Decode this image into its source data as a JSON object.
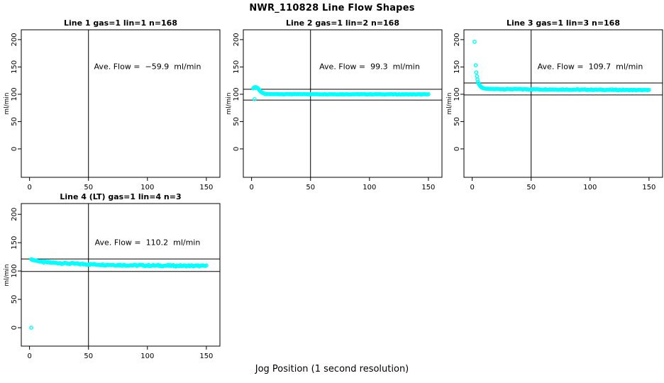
{
  "figure_title": "NWR_110828  Line Flow Shapes",
  "outer_x_label": "Jog Position (1 second resolution)",
  "point_color": "#00ffff",
  "axis_color": "#000000",
  "chart_data": [
    {
      "type": "scatter",
      "title": "Line 1 gas=1 lin=1 n=168",
      "annotation": "Ave. Flow =  −59.9  ml/min",
      "ave_flow_ml_min": -59.9,
      "gas": 1,
      "lin": 1,
      "n": 168,
      "ylabel": "ml/min",
      "xticks": [
        0,
        50,
        100,
        150
      ],
      "yticks": [
        0,
        50,
        100,
        150,
        200
      ],
      "xlim": [
        -7,
        161.5
      ],
      "ylim": [
        -52,
        218
      ],
      "vline_x": 50,
      "hlines": [],
      "outliers": [],
      "points_head": [],
      "tail": null
    },
    {
      "type": "scatter",
      "title": "Line 2 gas=1 lin=2 n=168",
      "annotation": "Ave. Flow =  99.3  ml/min",
      "ave_flow_ml_min": 99.3,
      "gas": 1,
      "lin": 2,
      "n": 168,
      "ylabel": "ml/min",
      "xticks": [
        0,
        50,
        100,
        150
      ],
      "yticks": [
        0,
        50,
        100,
        150,
        200
      ],
      "xlim": [
        -7,
        161.5
      ],
      "ylim": [
        -52,
        218
      ],
      "vline_x": 50,
      "hlines": [
        109.2,
        89.4
      ],
      "outliers": [
        [
          2.5,
          91
        ]
      ],
      "points_head": [
        [
          1.5,
          111
        ],
        [
          2,
          112
        ],
        [
          2.5,
          112.5
        ],
        [
          3,
          113
        ],
        [
          3.5,
          113
        ],
        [
          4,
          112.5
        ],
        [
          4.5,
          112
        ],
        [
          5,
          111.5
        ],
        [
          5.5,
          110.5
        ],
        [
          6,
          109.5
        ],
        [
          6.5,
          108
        ],
        [
          7,
          106.5
        ],
        [
          7.5,
          105.5
        ],
        [
          8,
          104.5
        ],
        [
          8.5,
          103.5
        ],
        [
          9,
          103
        ],
        [
          9.5,
          102.5
        ],
        [
          10,
          102
        ],
        [
          10.5,
          101.5
        ],
        [
          11,
          101
        ],
        [
          11.5,
          100.7
        ],
        [
          12,
          100.5
        ],
        [
          12.5,
          100.3
        ]
      ],
      "tail": {
        "x_from": 13,
        "x_to": 150,
        "x_step": 1,
        "mode": "linear",
        "level_start": 100.2,
        "level_end": 99.8,
        "noise": 0.35
      }
    },
    {
      "type": "scatter",
      "title": "Line 3 gas=1 lin=3 n=168",
      "annotation": "Ave. Flow =  109.7  ml/min",
      "ave_flow_ml_min": 109.7,
      "gas": 1,
      "lin": 3,
      "n": 168,
      "ylabel": "ml/min",
      "xticks": [
        0,
        50,
        100,
        150
      ],
      "yticks": [
        0,
        50,
        100,
        150,
        200
      ],
      "xlim": [
        -7,
        161.5
      ],
      "ylim": [
        -52,
        218
      ],
      "vline_x": 50,
      "hlines": [
        120.7,
        98.7
      ],
      "outliers": [],
      "points_head": [
        [
          2,
          196
        ],
        [
          3,
          153
        ],
        [
          3.5,
          140
        ],
        [
          4,
          133
        ],
        [
          4.5,
          127
        ],
        [
          5,
          122.5
        ],
        [
          5.5,
          119.5
        ],
        [
          6,
          117.5
        ],
        [
          6.5,
          116
        ],
        [
          7,
          114.5
        ],
        [
          7.5,
          113.5
        ],
        [
          8,
          112.5
        ],
        [
          8.5,
          112
        ],
        [
          9,
          111.5
        ],
        [
          9.5,
          111
        ],
        [
          10,
          110.8
        ],
        [
          11,
          110.3
        ],
        [
          12,
          110
        ]
      ],
      "tail": {
        "x_from": 13,
        "x_to": 150,
        "x_step": 1,
        "mode": "linear",
        "level_start": 109.6,
        "level_end": 107.6,
        "noise": 0.7
      }
    },
    {
      "type": "scatter",
      "title": "Line 4 (LT) gas=1 lin=4 n=3",
      "annotation": "Ave. Flow =  110.2  ml/min",
      "ave_flow_ml_min": 110.2,
      "gas": 1,
      "lin": 4,
      "n": 3,
      "ylabel": "ml/min",
      "xticks": [
        0,
        50,
        100,
        150
      ],
      "yticks": [
        0,
        50,
        100,
        150,
        200
      ],
      "xlim": [
        -7,
        161.5
      ],
      "ylim": [
        -32.5,
        219
      ],
      "vline_x": 50,
      "hlines": [
        121.2,
        99.2
      ],
      "outliers": [
        [
          1.5,
          0
        ]
      ],
      "points_head": [
        [
          1.5,
          120.5
        ],
        [
          2,
          120
        ],
        [
          2.5,
          119.5
        ],
        [
          3,
          119.5
        ],
        [
          3.5,
          119
        ],
        [
          4,
          119
        ],
        [
          4.5,
          118.5
        ],
        [
          5,
          118.5
        ],
        [
          6,
          118
        ],
        [
          7,
          117.5
        ],
        [
          8,
          117
        ],
        [
          9,
          116.5
        ]
      ],
      "tail": {
        "x_from": 10,
        "x_to": 150,
        "x_step": 1,
        "mode": "exp",
        "level_start": 116,
        "level_end": 108.5,
        "tau": 50,
        "noise": 1.2
      }
    }
  ]
}
